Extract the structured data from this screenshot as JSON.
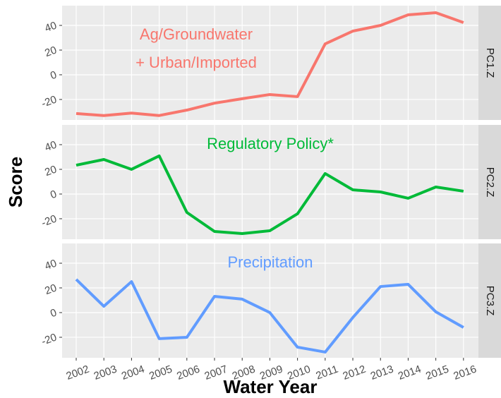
{
  "chart_data": {
    "type": "line",
    "xlabel": "Water Year",
    "ylabel": "Score",
    "x": [
      2002,
      2003,
      2004,
      2005,
      2006,
      2007,
      2008,
      2009,
      2010,
      2011,
      2012,
      2013,
      2014,
      2015,
      2016
    ],
    "xticks": [
      2002,
      2003,
      2004,
      2005,
      2006,
      2007,
      2008,
      2009,
      2010,
      2011,
      2012,
      2013,
      2014,
      2015,
      2016
    ],
    "xlim": [
      2001.49,
      2016.54
    ],
    "ylim": [
      -36.6,
      56
    ],
    "yticks": [
      -20,
      0,
      20,
      40
    ],
    "grid": true,
    "series": [
      {
        "name": "PC1.Z",
        "color": "#F8766D",
        "annotation": [
          "Ag/Groundwater",
          "+ Urban/Imported"
        ],
        "values": [
          -31.4,
          -33,
          -31,
          -33,
          -28.6,
          -23,
          -19.4,
          -16,
          -17.7,
          25,
          35.4,
          40,
          48.6,
          50.3,
          42.3
        ]
      },
      {
        "name": "PC2.Z",
        "color": "#00BA38",
        "annotation": [
          "Regulatory Policy*"
        ],
        "values": [
          23.4,
          28,
          20,
          30.9,
          -14.9,
          -30.3,
          -32,
          -29.7,
          -16,
          16.6,
          3.4,
          1.7,
          -3.4,
          5.7,
          2.3
        ]
      },
      {
        "name": "PC3.Z",
        "color": "#619CFF",
        "annotation": [
          "Precipitation"
        ],
        "values": [
          26.9,
          5.1,
          25.1,
          -21.1,
          -20,
          13.1,
          10.9,
          0,
          -28,
          -32,
          -4,
          21.1,
          22.9,
          0.6,
          -12
        ]
      }
    ]
  }
}
